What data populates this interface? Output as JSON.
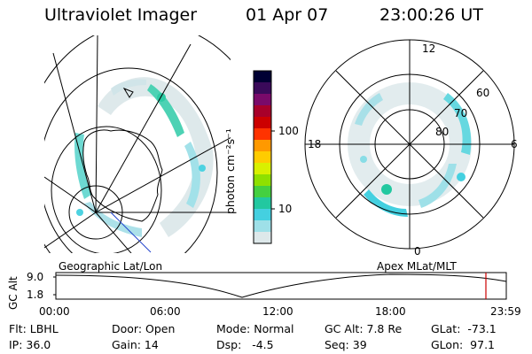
{
  "header": {
    "instrument": "Ultraviolet Imager",
    "date": "01 Apr 07",
    "time": "23:00:26 UT"
  },
  "colorbar": {
    "unit_label": "photon cm⁻²s⁻¹",
    "ticks": [
      "100",
      "10"
    ],
    "colors": [
      "#000033",
      "#3a0a5a",
      "#7a0a6a",
      "#a8002a",
      "#cc0000",
      "#ff3300",
      "#ff9900",
      "#ffcc00",
      "#d9f000",
      "#8fe000",
      "#44d040",
      "#22c8a0",
      "#44d0e0",
      "#9ee0e8",
      "#dde8ea"
    ]
  },
  "polar_plot": {
    "mlt_labels": [
      "12",
      "18",
      "6",
      "0"
    ],
    "lat_labels": [
      "60",
      "70",
      "80"
    ]
  },
  "timeline": {
    "left_label": "Geographic Lat/Lon",
    "right_label": "Apex MLat/MLT",
    "y_axis_label": "GC Alt",
    "y_ticks": [
      "9.0",
      "1.8"
    ],
    "x_ticks": [
      "00:00",
      "06:00",
      "12:00",
      "18:00",
      "23:59"
    ],
    "marker_time": "23:00",
    "marker_color": "#cc0000"
  },
  "status": {
    "flt": "Flt: LBHL",
    "ip": "IP: 36.0",
    "door": "Door: Open",
    "gain": "Gain: 14",
    "mode": "Mode: Normal",
    "dsp": "Dsp:   -4.5",
    "gc_alt": "GC Alt: 7.8 Re",
    "seq": "Seq: 39",
    "glat": "GLat:  -73.1",
    "glon": "GLon:  97.1"
  }
}
